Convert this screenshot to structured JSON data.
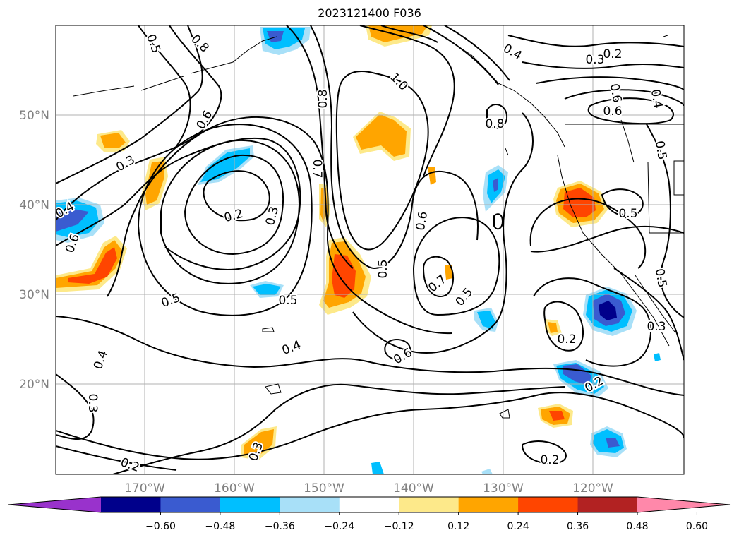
{
  "title": "2023121400 F036",
  "map": {
    "lat_labels": [
      "50°N",
      "40°N",
      "30°N",
      "20°N"
    ],
    "lon_labels": [
      "170°W",
      "160°W",
      "150°W",
      "140°W",
      "130°W",
      "120°W"
    ],
    "contour_labels": [
      "0.8",
      "0.5",
      "0.6",
      "0.3",
      "0.4",
      "0.6",
      "0.2",
      "0.3",
      "0.5",
      "0.5",
      "0.4",
      "0.8",
      "1.0",
      "0.7",
      "0.5",
      "0.6",
      "0.6",
      "0.7",
      "0.5",
      "0.4",
      "0.3",
      "0.2",
      "0.8",
      "0.6",
      "0.5",
      "0.5",
      "0.5",
      "0.3",
      "0.2",
      "0.2",
      "0.2",
      "0.3",
      "0.4",
      "0.3",
      "0.2",
      "0.6",
      "0.4"
    ],
    "line_color": "#000000",
    "grid_color": "#b0b0b0",
    "land_outline_color": "#000000"
  },
  "colorbar": {
    "tick_labels": [
      "−0.60",
      "−0.48",
      "−0.36",
      "−0.24",
      "−0.12",
      "0.12",
      "0.24",
      "0.36",
      "0.48",
      "0.60"
    ],
    "colors": [
      "#9932cc",
      "#00008b",
      "#3a5bd0",
      "#00bfff",
      "#a8e0f8",
      "#ffffff",
      "#fde98a",
      "#ffa500",
      "#ff4500",
      "#b22222",
      "#ff88aa"
    ]
  }
}
